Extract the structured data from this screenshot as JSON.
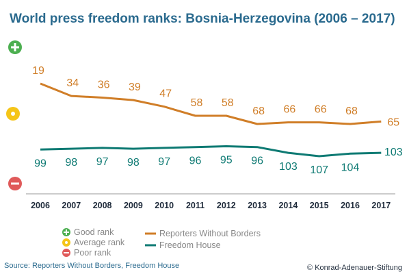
{
  "title": "World press freedom ranks: Bosnia-Herzegovina (2006 – 2017)",
  "source": "Source: Reporters Without Borders, Freedom House",
  "credit": "© Konrad-Adenauer-Stiftung",
  "rank_legend": [
    {
      "label": "Good rank",
      "color": "#4caf50",
      "icon": "plus-icon"
    },
    {
      "label": "Average rank",
      "color": "#f5c518",
      "icon": "circle-icon"
    },
    {
      "label": "Poor rank",
      "color": "#e05a5a",
      "icon": "minus-icon"
    }
  ],
  "chart_data": {
    "type": "line",
    "title": "World press freedom ranks: Bosnia-Herzegovina (2006 – 2017)",
    "categories": [
      "2006",
      "2007",
      "2008",
      "2009",
      "2010",
      "2011",
      "2012",
      "2013",
      "2014",
      "2015",
      "2016",
      "2017"
    ],
    "series": [
      {
        "name": "Reporters Without Borders",
        "color": "#d07e28",
        "values": [
          19,
          34,
          36,
          39,
          47,
          58,
          58,
          68,
          66,
          66,
          68,
          65
        ]
      },
      {
        "name": "Freedom House",
        "color": "#0e7a73",
        "values": [
          99,
          98,
          97,
          98,
          97,
          96,
          95,
          96,
          103,
          107,
          104,
          103
        ]
      }
    ],
    "y_axis": "rank, inverted (lower rank number shown higher); no tick labels",
    "grid": false,
    "legend_position": "bottom-center"
  }
}
